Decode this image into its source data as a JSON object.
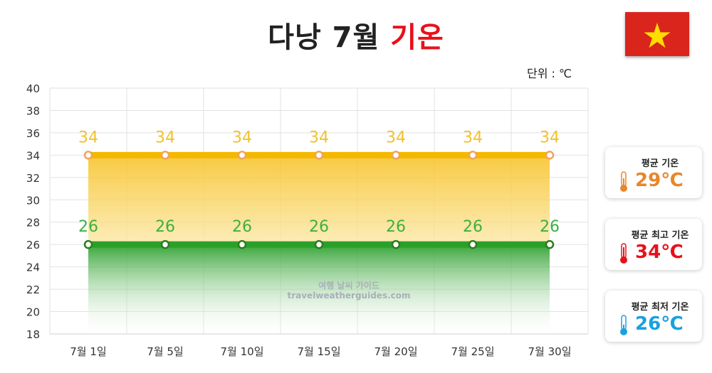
{
  "title": {
    "prefix": "다낭 7월",
    "accent": "기온"
  },
  "unit_label": "단위 : ℃",
  "watermark": {
    "line1": "여행 날씨 가이드",
    "line2": "travelweatherguides.com"
  },
  "colors": {
    "high": "#f5b800",
    "high_label": "#f2c12e",
    "high_marker": "#f0a35a",
    "low": "#2aa02a",
    "low_label": "#3cb043",
    "low_marker": "#2a7d1e",
    "accent": "#e8101a"
  },
  "chart_data": {
    "type": "area",
    "categories": [
      "7월 1일",
      "7월 5일",
      "7월 10일",
      "7월 15일",
      "7월 20일",
      "7월 25일",
      "7월 30일"
    ],
    "series": [
      {
        "values": [
          34,
          34,
          34,
          34,
          34,
          34,
          34
        ],
        "labels": [
          "34",
          "34",
          "34",
          "34",
          "34",
          "34",
          "34"
        ]
      },
      {
        "values": [
          26,
          26,
          26,
          26,
          26,
          26,
          26
        ],
        "labels": [
          "26",
          "26",
          "26",
          "26",
          "26",
          "26",
          "26"
        ]
      }
    ],
    "ylim": [
      18,
      40
    ],
    "yticks": [
      "18",
      "20",
      "22",
      "24",
      "26",
      "28",
      "30",
      "32",
      "34",
      "36",
      "38",
      "40"
    ],
    "grid": true
  },
  "cards": [
    {
      "label": "평균 기온",
      "value": "29℃",
      "color": "#e8862a",
      "icon": "thermometer-icon"
    },
    {
      "label": "평균 최고 기온",
      "value": "34℃",
      "color": "#e8101a",
      "icon": "thermometer-icon"
    },
    {
      "label": "평균 최저 기온",
      "value": "26℃",
      "color": "#1aa0e0",
      "icon": "thermometer-icon"
    }
  ]
}
